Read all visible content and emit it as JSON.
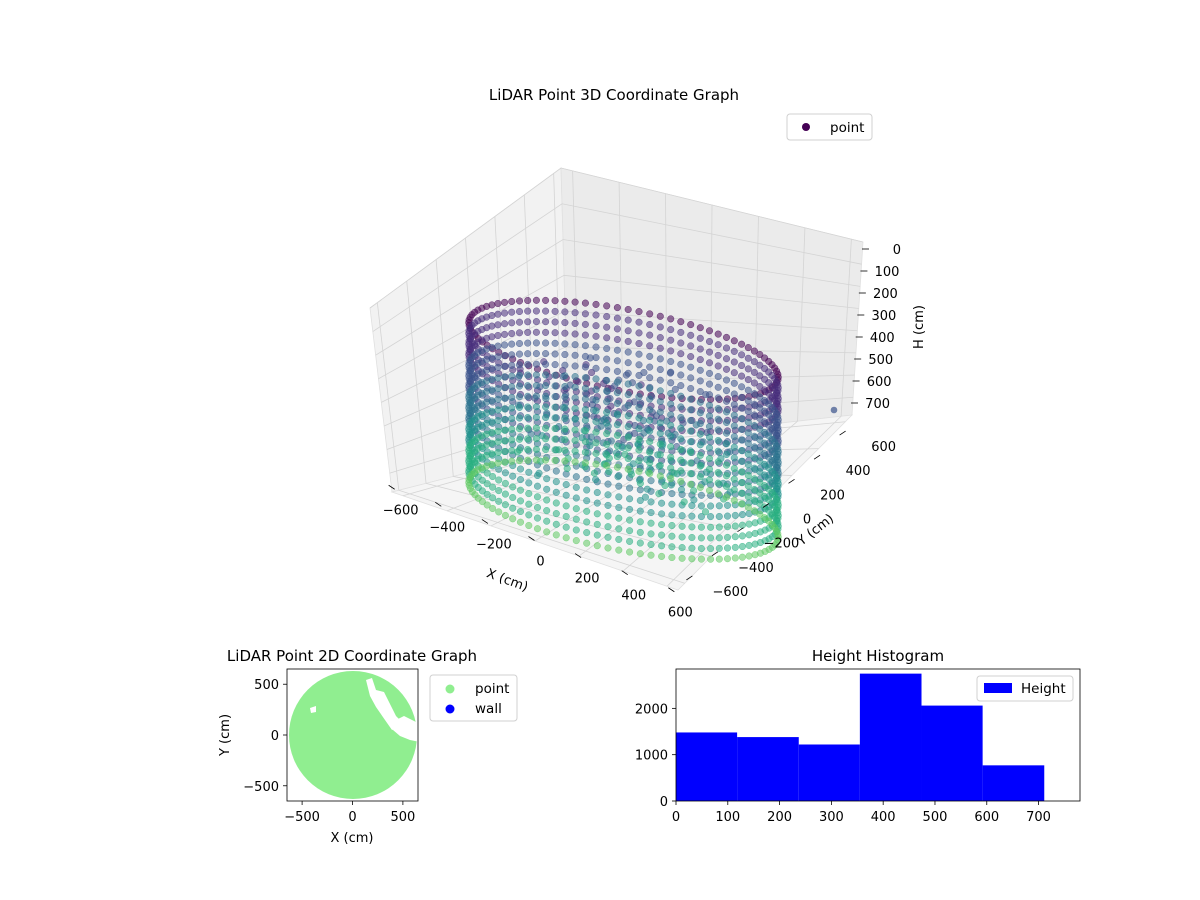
{
  "chart_data": [
    {
      "type": "scatter",
      "projection": "3d",
      "title": "LiDAR Point 3D Coordinate Graph",
      "xlabel": "X (cm)",
      "ylabel": "Y (cm)",
      "zlabel": "H (cm)",
      "xlim": [
        -650,
        650
      ],
      "ylim": [
        -650,
        650
      ],
      "zlim": [
        780,
        0
      ],
      "xticks": [
        "−600",
        "−400",
        "−200",
        "0",
        "200",
        "400",
        "600"
      ],
      "yticks": [
        "−600",
        "−400",
        "−200",
        "0",
        "200",
        "400",
        "600"
      ],
      "zticks": [
        "0",
        "100",
        "200",
        "300",
        "400",
        "500",
        "600",
        "700"
      ],
      "zaxis_inverted": true,
      "colormap": "viridis",
      "grid": true,
      "legend": {
        "entries": [
          "point"
        ],
        "placement": "top-right"
      },
      "series": [
        {
          "name": "point",
          "description_shape": "cylindrical wall of points, radius about 650 cm, heights 0 to 780 cm, plus interior clusters",
          "wall_radius": 650,
          "height_range": [
            0,
            780
          ]
        }
      ]
    },
    {
      "type": "scatter",
      "title": "LiDAR Point 2D Coordinate Graph",
      "xlabel": "X (cm)",
      "ylabel": "Y (cm)",
      "xlim": [
        -650,
        650
      ],
      "ylim": [
        -650,
        650
      ],
      "xticks": [
        "−500",
        "0",
        "500"
      ],
      "yticks": [
        "−500",
        "0",
        "500"
      ],
      "legend": {
        "entries": [
          "point",
          "wall"
        ],
        "placement": "outside-right"
      },
      "series": [
        {
          "name": "point",
          "color": "#90ee90",
          "region": "disc of radius about 650 cm"
        },
        {
          "name": "wall",
          "color": "#0000ff"
        }
      ]
    },
    {
      "type": "bar",
      "subtype": "histogram",
      "title": "Height Histogram",
      "xlim": [
        0,
        780
      ],
      "ylim": [
        0,
        2850
      ],
      "xticks": [
        "0",
        "100",
        "200",
        "300",
        "400",
        "500",
        "600",
        "700"
      ],
      "yticks": [
        "0",
        "1000",
        "2000"
      ],
      "legend": {
        "entries": [
          "Height"
        ],
        "placement": "top-right"
      },
      "bin_edges": [
        0,
        118,
        237,
        355,
        474,
        592,
        711
      ],
      "values": [
        1480,
        1380,
        1220,
        2750,
        2060,
        770
      ],
      "color": "#0000ff",
      "series_name": "Height"
    }
  ]
}
